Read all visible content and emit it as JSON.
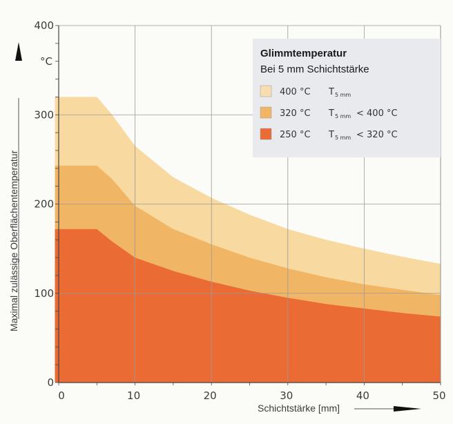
{
  "chart_data": {
    "type": "area",
    "ylabel": "Maximal zulässige Oberflächentemperatur",
    "y_unit": "°C",
    "xlabel": "Schichtstärke [mm]",
    "xlim": [
      0,
      50
    ],
    "ylim": [
      0,
      400
    ],
    "xticks": [
      "0",
      "10",
      "20",
      "30",
      "40",
      "50"
    ],
    "yticks": [
      "0",
      "100",
      "200",
      "300",
      "400"
    ],
    "grid": true,
    "legend": {
      "title": "Glimmtemperatur",
      "subtitle": "Bei 5 mm Schichtstärke",
      "placement": "top-right",
      "entries": [
        {
          "label": "400 °C",
          "expr_main": "T",
          "expr_sub": "5 mm",
          "expr_tail": "",
          "color": "#f8ddb0"
        },
        {
          "label": "320 °C",
          "expr_main": "T",
          "expr_sub": "5 mm",
          "expr_tail": "< 400 °C",
          "color": "#f1b665"
        },
        {
          "label": "250 °C",
          "expr_main": "T",
          "expr_sub": "5 mm",
          "expr_tail": "< 320 °C",
          "color": "#eb6b35"
        }
      ]
    },
    "series": [
      {
        "name": "400 °C",
        "color": "#f8d99f",
        "x": [
          -0.5,
          5,
          7,
          10,
          15,
          20,
          25,
          30,
          35,
          40,
          45,
          50
        ],
        "y": [
          320,
          320,
          300,
          265,
          230,
          207,
          188,
          172,
          160,
          150,
          141,
          133
        ]
      },
      {
        "name": "320 °C",
        "color": "#f1b665",
        "x": [
          -0.5,
          5,
          7,
          10,
          15,
          20,
          25,
          30,
          35,
          40,
          45,
          50
        ],
        "y": [
          243,
          243,
          228,
          198,
          172,
          155,
          140,
          128,
          118,
          110,
          104,
          98
        ]
      },
      {
        "name": "250 °C",
        "color": "#eb6b35",
        "x": [
          -0.5,
          5,
          7,
          10,
          15,
          20,
          25,
          30,
          35,
          40,
          45,
          50
        ],
        "y": [
          172,
          172,
          158,
          140,
          125,
          113,
          103,
          95,
          88,
          83,
          78,
          74
        ]
      }
    ]
  }
}
